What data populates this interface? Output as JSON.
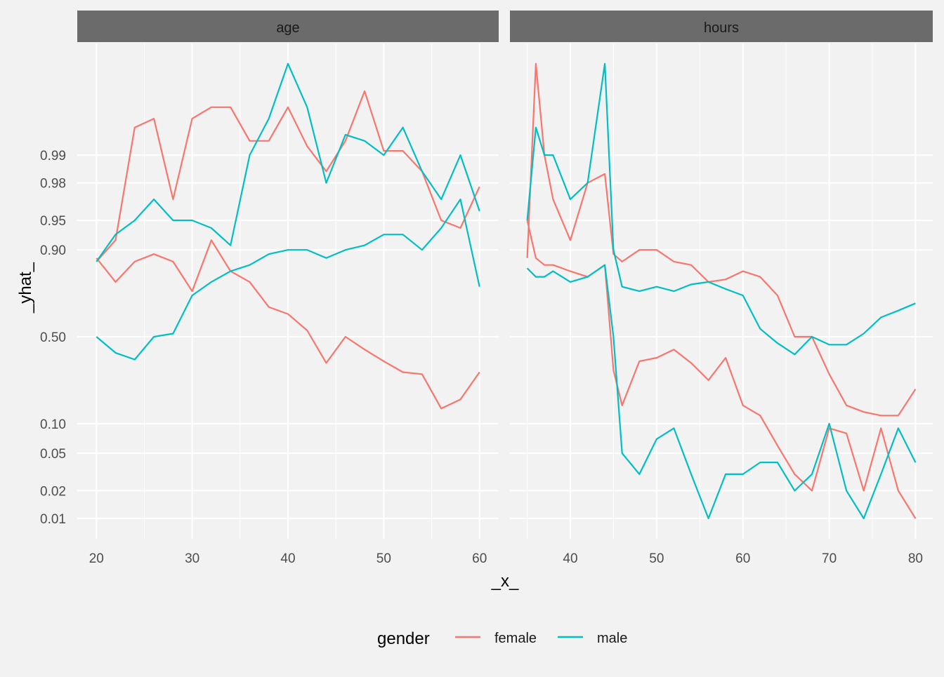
{
  "chart_data": {
    "type": "line",
    "xlabel": "_x_",
    "ylabel": "_yhat_",
    "y_scale": "logit",
    "y_ticks": [
      "0.01",
      "0.02",
      "0.05",
      "0.10",
      "0.50",
      "0.90",
      "0.95",
      "0.98",
      "0.99"
    ],
    "y_tick_values": [
      0.01,
      0.02,
      0.05,
      0.1,
      0.5,
      0.9,
      0.95,
      0.98,
      0.99
    ],
    "grid": true,
    "legend": {
      "title": "gender",
      "position": "bottom",
      "entries": [
        {
          "label": "female",
          "color": "#f8766d"
        },
        {
          "label": "male",
          "color": "#00bfc4"
        }
      ]
    },
    "panels": [
      {
        "strip": "age",
        "x_ticks": [
          20,
          30,
          40,
          50,
          60
        ],
        "xlim": [
          18,
          62
        ],
        "series": [
          {
            "gender": "female",
            "color": "#f8766d",
            "x": [
              20,
              22,
              24,
              26,
              28,
              30,
              32,
              34,
              36,
              38,
              40,
              42,
              44,
              46,
              48,
              50,
              52,
              54,
              56,
              58,
              60
            ],
            "y": [
              0.87,
              0.92,
              0.995,
              0.996,
              0.97,
              0.996,
              0.997,
              0.997,
              0.993,
              0.993,
              0.997,
              0.992,
              0.985,
              0.993,
              0.998,
              0.991,
              0.991,
              0.985,
              0.95,
              0.94,
              0.978
            ]
          },
          {
            "gender": "female",
            "color": "#f8766d",
            "x": [
              20,
              22,
              24,
              26,
              28,
              30,
              32,
              34,
              36,
              38,
              40,
              42,
              44,
              46,
              48,
              50,
              52,
              54,
              56,
              58,
              60
            ],
            "y": [
              0.88,
              0.8,
              0.87,
              0.89,
              0.87,
              0.76,
              0.92,
              0.84,
              0.8,
              0.68,
              0.64,
              0.54,
              0.34,
              0.5,
              0.42,
              0.35,
              0.29,
              0.28,
              0.14,
              0.17,
              0.29
            ]
          },
          {
            "gender": "male",
            "color": "#00bfc4",
            "x": [
              20,
              22,
              24,
              26,
              28,
              30,
              32,
              34,
              36,
              38,
              40,
              42,
              44,
              46,
              48,
              50,
              52,
              54,
              56,
              58,
              60
            ],
            "y": [
              0.87,
              0.93,
              0.95,
              0.97,
              0.95,
              0.95,
              0.94,
              0.91,
              0.99,
              0.996,
              0.999,
              0.997,
              0.98,
              0.994,
              0.993,
              0.99,
              0.995,
              0.985,
              0.97,
              0.99,
              0.96
            ]
          },
          {
            "gender": "male",
            "color": "#00bfc4",
            "x": [
              20,
              22,
              24,
              26,
              28,
              30,
              32,
              34,
              36,
              38,
              40,
              42,
              44,
              46,
              48,
              50,
              52,
              54,
              56,
              58,
              60
            ],
            "y": [
              0.5,
              0.4,
              0.36,
              0.5,
              0.52,
              0.74,
              0.8,
              0.84,
              0.86,
              0.89,
              0.9,
              0.9,
              0.88,
              0.9,
              0.91,
              0.93,
              0.93,
              0.9,
              0.94,
              0.97,
              0.78
            ]
          }
        ]
      },
      {
        "strip": "hours",
        "x_ticks": [
          40,
          50,
          60,
          70,
          80
        ],
        "xlim": [
          33,
          82
        ],
        "series": [
          {
            "gender": "female",
            "color": "#f8766d",
            "x": [
              35,
              36,
              37,
              38,
              40,
              42,
              44,
              45,
              46,
              48,
              50,
              52,
              54,
              56,
              58,
              60,
              62,
              64,
              66,
              68,
              70,
              72,
              74,
              76,
              78,
              80
            ],
            "y": [
              0.88,
              0.999,
              0.99,
              0.97,
              0.92,
              0.98,
              0.984,
              0.89,
              0.87,
              0.9,
              0.9,
              0.87,
              0.86,
              0.8,
              0.81,
              0.84,
              0.82,
              0.74,
              0.5,
              0.5,
              0.28,
              0.15,
              0.13,
              0.12,
              0.12,
              0.21
            ]
          },
          {
            "gender": "female",
            "color": "#f8766d",
            "x": [
              35,
              36,
              37,
              38,
              40,
              42,
              44,
              45,
              46,
              48,
              50,
              52,
              54,
              56,
              58,
              60,
              62,
              64,
              66,
              68,
              70,
              72,
              74,
              76,
              78,
              80
            ],
            "y": [
              0.95,
              0.88,
              0.86,
              0.86,
              0.84,
              0.82,
              0.86,
              0.3,
              0.15,
              0.35,
              0.37,
              0.42,
              0.34,
              0.25,
              0.37,
              0.15,
              0.12,
              0.06,
              0.03,
              0.02,
              0.09,
              0.08,
              0.02,
              0.09,
              0.02,
              0.01
            ]
          },
          {
            "gender": "male",
            "color": "#00bfc4",
            "x": [
              35,
              36,
              37,
              38,
              40,
              42,
              44,
              45,
              46,
              48,
              50,
              52,
              54,
              56,
              58,
              60,
              62,
              64,
              66,
              68,
              70,
              72,
              74,
              76,
              78,
              80
            ],
            "y": [
              0.95,
              0.995,
              0.99,
              0.99,
              0.97,
              0.98,
              0.999,
              0.9,
              0.78,
              0.76,
              0.78,
              0.76,
              0.79,
              0.8,
              0.77,
              0.74,
              0.55,
              0.46,
              0.39,
              0.5,
              0.45,
              0.45,
              0.52,
              0.62,
              0.66,
              0.7
            ]
          },
          {
            "gender": "male",
            "color": "#00bfc4",
            "x": [
              35,
              36,
              37,
              38,
              40,
              42,
              44,
              45,
              46,
              48,
              50,
              52,
              54,
              56,
              58,
              60,
              62,
              64,
              66,
              68,
              70,
              72,
              74,
              76,
              78,
              80
            ],
            "y": [
              0.85,
              0.82,
              0.82,
              0.84,
              0.8,
              0.82,
              0.86,
              0.5,
              0.05,
              0.03,
              0.07,
              0.09,
              0.03,
              0.01,
              0.03,
              0.03,
              0.04,
              0.04,
              0.02,
              0.03,
              0.1,
              0.02,
              0.01,
              0.03,
              0.09,
              0.04
            ]
          }
        ]
      }
    ]
  }
}
